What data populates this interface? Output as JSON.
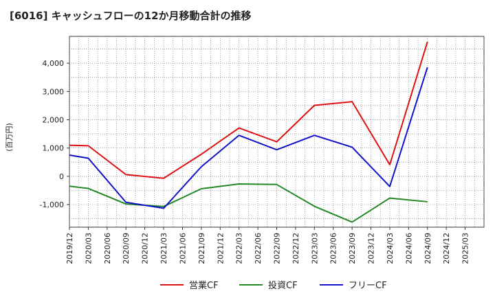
{
  "chart_data": {
    "type": "line",
    "title": "[6016]  キャッシュフローの12か月移動合計の推移",
    "ylabel": "(百万円)",
    "xlabel": "",
    "ylim": [
      -1800,
      4950
    ],
    "yticks": [
      -1000,
      0,
      1000,
      2000,
      3000,
      4000
    ],
    "ytick_labels": [
      "-1,000",
      "0",
      "1,000",
      "2,000",
      "3,000",
      "4,000"
    ],
    "xlim": [
      0,
      22
    ],
    "x_tick_labels": [
      "2019/12",
      "2020/03",
      "2020/06",
      "2020/09",
      "2020/12",
      "2021/03",
      "2021/06",
      "2021/09",
      "2021/12",
      "2022/03",
      "2022/06",
      "2022/09",
      "2022/12",
      "2023/03",
      "2023/06",
      "2023/09",
      "2023/12",
      "2024/03",
      "2024/06",
      "2024/09",
      "2024/12",
      "2025/03"
    ],
    "grid": true,
    "legend_position": "bottom",
    "series": [
      {
        "name": "営業CF",
        "color": "#dd1111",
        "x": [
          0,
          1,
          3,
          5,
          7,
          9,
          11,
          13,
          15,
          17,
          19
        ],
        "values": [
          1100,
          1080,
          60,
          -70,
          780,
          1710,
          1220,
          2510,
          2640,
          410,
          4760
        ]
      },
      {
        "name": "投資CF",
        "color": "#228822",
        "x": [
          0,
          1,
          3,
          5,
          7,
          9,
          11,
          13,
          15,
          17,
          19
        ],
        "values": [
          -350,
          -430,
          -980,
          -1070,
          -440,
          -270,
          -290,
          -1060,
          -1620,
          -770,
          -900
        ]
      },
      {
        "name": "フリーCF",
        "color": "#1111cc",
        "x": [
          0,
          1,
          3,
          5,
          7,
          9,
          11,
          13,
          15,
          17,
          19
        ],
        "values": [
          750,
          640,
          -920,
          -1130,
          340,
          1450,
          940,
          1450,
          1030,
          -360,
          3860
        ]
      }
    ]
  }
}
